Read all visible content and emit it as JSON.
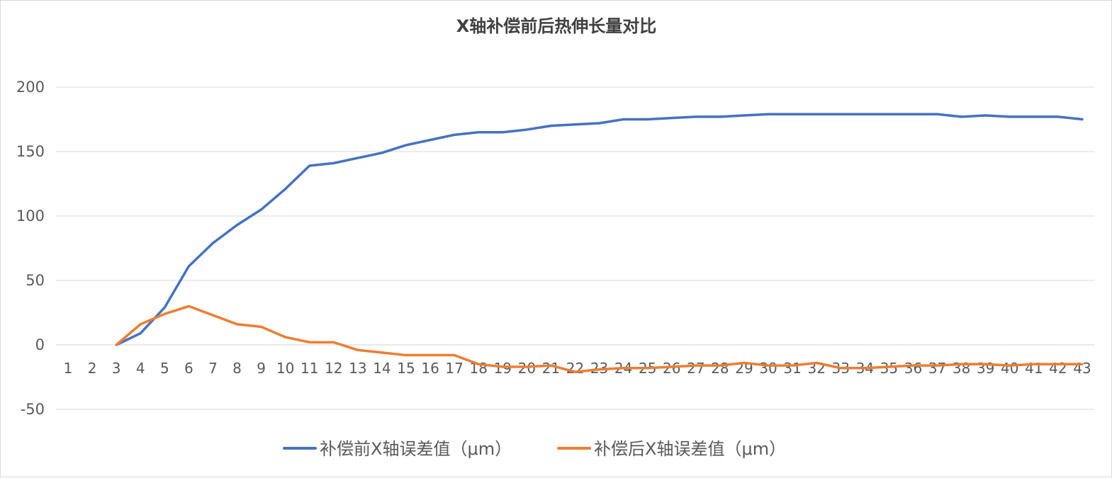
{
  "chart_data": {
    "type": "line",
    "title": "X轴补偿前后热伸长量对比",
    "xlabel": "",
    "ylabel": "",
    "ylim": [
      -50,
      200
    ],
    "yticks": [
      -50,
      0,
      50,
      100,
      150,
      200
    ],
    "grid": true,
    "legend_position": "bottom",
    "categories": [
      "1",
      "2",
      "3",
      "4",
      "5",
      "6",
      "7",
      "8",
      "9",
      "10",
      "11",
      "12",
      "13",
      "14",
      "15",
      "16",
      "17",
      "18",
      "19",
      "20",
      "21",
      "22",
      "23",
      "24",
      "25",
      "26",
      "27",
      "28",
      "29",
      "30",
      "31",
      "32",
      "33",
      "34",
      "35",
      "36",
      "37",
      "38",
      "39",
      "40",
      "41",
      "42",
      "43"
    ],
    "series": [
      {
        "name": "补偿前X轴误差值（μm）",
        "color": "#4472c4",
        "values": [
          null,
          null,
          0,
          9,
          29,
          61,
          79,
          93,
          105,
          121,
          139,
          141,
          145,
          149,
          155,
          159,
          163,
          165,
          165,
          167,
          170,
          171,
          172,
          175,
          175,
          176,
          177,
          177,
          178,
          179,
          179,
          179,
          179,
          179,
          179,
          179,
          179,
          177,
          178,
          177,
          177,
          177,
          175
        ]
      },
      {
        "name": "补偿后X轴误差值（μm）",
        "color": "#ed7d31",
        "values": [
          null,
          null,
          0,
          16,
          24,
          30,
          23,
          16,
          14,
          6,
          2,
          2,
          -4,
          -6,
          -8,
          -8,
          -8,
          -15,
          -17,
          -17,
          -16,
          -21,
          -19,
          -18,
          -18,
          -17,
          -16,
          -16,
          -14,
          -16,
          -16,
          -14,
          -18,
          -18,
          -17,
          -16,
          -16,
          -15,
          -15,
          -16,
          -15,
          -15,
          -15
        ]
      }
    ]
  }
}
